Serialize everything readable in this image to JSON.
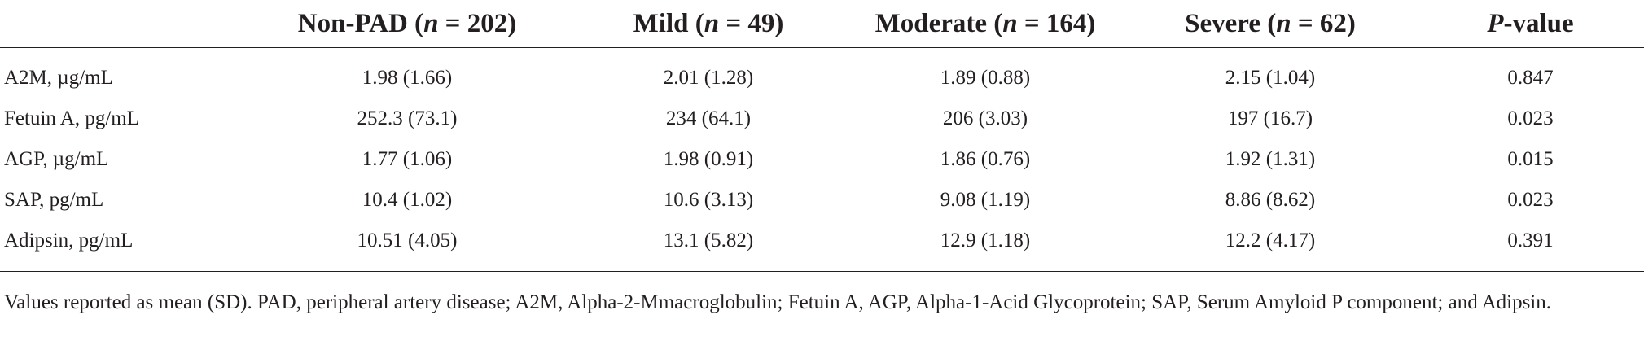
{
  "table": {
    "columns": [
      {
        "label": "",
        "prefix": "",
        "italic": "",
        "suffix": ""
      },
      {
        "label": "Non-PAD (n = 202)",
        "prefix": "Non-PAD (",
        "italic": "n",
        "suffix": " = 202)"
      },
      {
        "label": "Mild (n = 49)",
        "prefix": "Mild (",
        "italic": "n",
        "suffix": " = 49)"
      },
      {
        "label": "Moderate (n = 164)",
        "prefix": "Moderate (",
        "italic": "n",
        "suffix": " = 164)"
      },
      {
        "label": "Severe (n = 62)",
        "prefix": "Severe (",
        "italic": "n",
        "suffix": " = 62)"
      },
      {
        "label": "P-value",
        "prefix": "",
        "italic": "P",
        "suffix": "-value"
      }
    ],
    "rows": [
      {
        "label": "A2M, µg/mL",
        "cells": [
          "1.98 (1.66)",
          "2.01 (1.28)",
          "1.89 (0.88)",
          "2.15 (1.04)",
          "0.847"
        ]
      },
      {
        "label": "Fetuin A, pg/mL",
        "cells": [
          "252.3 (73.1)",
          "234 (64.1)",
          "206 (3.03)",
          "197 (16.7)",
          "0.023"
        ]
      },
      {
        "label": "AGP, µg/mL",
        "cells": [
          "1.77 (1.06)",
          "1.98 (0.91)",
          "1.86 (0.76)",
          "1.92 (1.31)",
          "0.015"
        ]
      },
      {
        "label": "SAP, pg/mL",
        "cells": [
          "10.4 (1.02)",
          "10.6 (3.13)",
          "9.08 (1.19)",
          "8.86 (8.62)",
          "0.023"
        ]
      },
      {
        "label": "Adipsin, pg/mL",
        "cells": [
          "10.51 (4.05)",
          "13.1 (5.82)",
          "12.9 (1.18)",
          "12.2 (4.17)",
          "0.391"
        ]
      }
    ]
  },
  "footnote": "Values reported as mean (SD). PAD, peripheral artery disease; A2M, Alpha-2-Mmacroglobulin; Fetuin A, AGP, Alpha-1-Acid Glycoprotein; SAP, Serum Amyloid P component; and Adipsin."
}
